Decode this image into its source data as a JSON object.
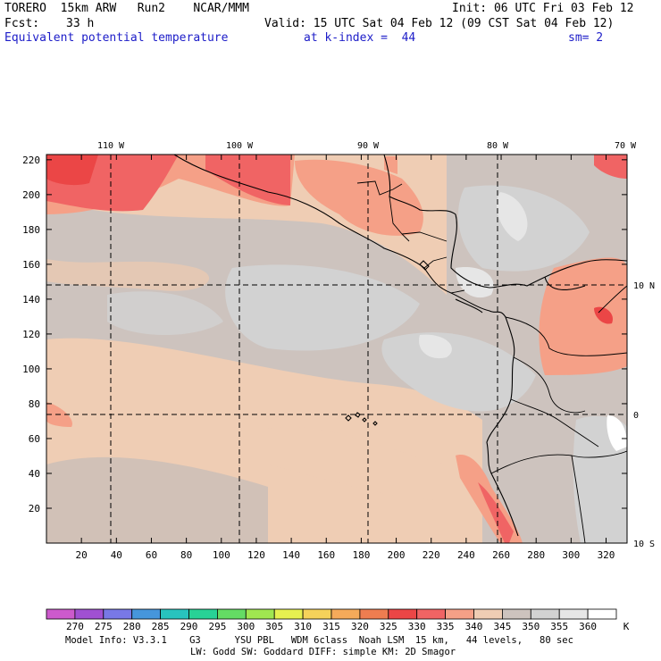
{
  "header": {
    "model": "TORERO  15km ARW   Run2    NCAR/MMM",
    "init": "Init: 06 UTC Fri 03 Feb 12",
    "fcst_label": "Fcst:",
    "fcst_hours": "33 h",
    "valid": "Valid: 15 UTC Sat 04 Feb 12 (09 CST Sat 04 Feb 12)",
    "field": "Equivalent potential temperature",
    "level": "at k-index =  44",
    "smoothing": "sm= 2"
  },
  "map": {
    "x_ticks": [
      "20",
      "40",
      "60",
      "80",
      "100",
      "120",
      "140",
      "160",
      "180",
      "200",
      "220",
      "240",
      "260",
      "280",
      "300",
      "320"
    ],
    "y_ticks": [
      "220",
      "200",
      "180",
      "160",
      "140",
      "120",
      "100",
      "80",
      "60",
      "40",
      "20"
    ],
    "lon_labels": [
      "110 W",
      "100 W",
      "90 W",
      "80 W",
      "70 W"
    ],
    "lat_labels": [
      "10 N",
      "0",
      "10 S"
    ]
  },
  "colorbar": {
    "labels": [
      "270",
      "275",
      "280",
      "285",
      "290",
      "295",
      "300",
      "305",
      "310",
      "315",
      "320",
      "325",
      "330",
      "335",
      "340",
      "345",
      "350",
      "355",
      "360"
    ],
    "unit": "K",
    "colors": [
      "#cc5acc",
      "#a050d2",
      "#7878e6",
      "#4696dc",
      "#28c3be",
      "#28d296",
      "#64dc64",
      "#a0e650",
      "#e6f050",
      "#f5d25a",
      "#f5aa5a",
      "#ee7d50",
      "#eb4646",
      "#f06464",
      "#f5a087",
      "#efcdb4",
      "#cdc3be",
      "#d2d2d2",
      "#e6e6e6",
      "#ffffff"
    ]
  },
  "footer": {
    "line1": "Model Info: V3.3.1    G3      YSU PBL   WDM 6class  Noah LSM  15 km,   44 levels,   80 sec",
    "line2": "LW: Godd SW: Goddard DIFF: simple KM: 2D Smagor"
  }
}
